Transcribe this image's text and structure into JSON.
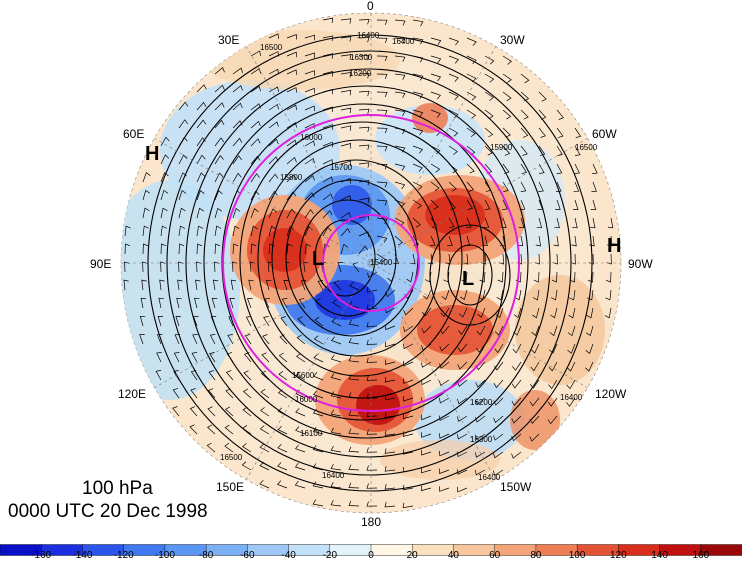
{
  "title": {
    "level": "100 hPa",
    "time": "0000 UTC 20 Dec 1998"
  },
  "map": {
    "projection": "north-polar-stereographic",
    "meridian_labels": [
      "0",
      "30W",
      "60W",
      "90W",
      "120W",
      "150W",
      "180",
      "150E",
      "120E",
      "90E",
      "60E",
      "30E"
    ],
    "pressure_systems": [
      {
        "label": "H",
        "near": "60E"
      },
      {
        "label": "H",
        "near": "90W"
      },
      {
        "label": "L",
        "near": "pole"
      },
      {
        "label": "L",
        "near": "90W"
      }
    ],
    "contour_labels": [
      "16400",
      "16300",
      "16200",
      "16100",
      "16000",
      "15900",
      "15800",
      "15700",
      "15600",
      "15500",
      "15400",
      "16500"
    ],
    "colors": {
      "contour": "#000000",
      "circle": "#e020e0",
      "warm": "#d01818",
      "cold": "#1840e0"
    }
  },
  "colorbar": {
    "tick_labels": [
      "-160",
      "-140",
      "-120",
      "-100",
      "-80",
      "-60",
      "-40",
      "-20",
      "0",
      "20",
      "40",
      "60",
      "80",
      "100",
      "120",
      "140",
      "160"
    ],
    "colors": [
      "#0a10c8",
      "#1a30e0",
      "#2b55ea",
      "#3f78f0",
      "#5b96f2",
      "#7cb0f4",
      "#9ec9f6",
      "#c2e0f8",
      "#e4f2fb",
      "#fff6e4",
      "#fbe0c0",
      "#f7c69c",
      "#f3a478",
      "#ee7e56",
      "#e45234",
      "#d82c1c",
      "#c01010",
      "#9a0808"
    ]
  }
}
